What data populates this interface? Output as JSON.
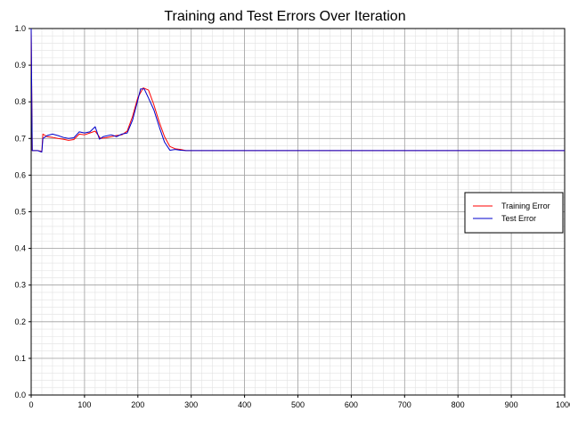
{
  "chart_data": {
    "type": "line",
    "title": "Training and Test Errors Over Iteration",
    "xlabel": "",
    "ylabel": "",
    "xlim": [
      0,
      1000
    ],
    "ylim": [
      0.0,
      1.0
    ],
    "x_ticks": [
      "0",
      "100",
      "200",
      "300",
      "400",
      "500",
      "600",
      "700",
      "800",
      "900",
      "1000"
    ],
    "y_ticks": [
      "0.0",
      "0.1",
      "0.2",
      "0.3",
      "0.4",
      "0.5",
      "0.6",
      "0.7",
      "0.8",
      "0.9",
      "1.0"
    ],
    "grid": true,
    "minor_grid": true,
    "legend_position": "right",
    "series": [
      {
        "name": "Training Error",
        "color": "#ff0000",
        "points": [
          [
            0,
            1.0
          ],
          [
            2,
            0.667
          ],
          [
            12,
            0.667
          ],
          [
            20,
            0.665
          ],
          [
            22,
            0.712
          ],
          [
            30,
            0.705
          ],
          [
            40,
            0.703
          ],
          [
            50,
            0.7
          ],
          [
            60,
            0.698
          ],
          [
            70,
            0.695
          ],
          [
            80,
            0.697
          ],
          [
            90,
            0.712
          ],
          [
            100,
            0.71
          ],
          [
            110,
            0.715
          ],
          [
            120,
            0.72
          ],
          [
            130,
            0.7
          ],
          [
            140,
            0.702
          ],
          [
            150,
            0.705
          ],
          [
            160,
            0.708
          ],
          [
            170,
            0.71
          ],
          [
            180,
            0.72
          ],
          [
            190,
            0.76
          ],
          [
            200,
            0.812
          ],
          [
            210,
            0.838
          ],
          [
            220,
            0.832
          ],
          [
            230,
            0.792
          ],
          [
            240,
            0.745
          ],
          [
            250,
            0.705
          ],
          [
            260,
            0.678
          ],
          [
            270,
            0.672
          ],
          [
            280,
            0.67
          ],
          [
            290,
            0.667
          ],
          [
            300,
            0.667
          ],
          [
            1000,
            0.667
          ]
        ]
      },
      {
        "name": "Test Error",
        "color": "#0000cc",
        "points": [
          [
            0,
            1.0
          ],
          [
            2,
            0.667
          ],
          [
            12,
            0.667
          ],
          [
            20,
            0.663
          ],
          [
            22,
            0.7
          ],
          [
            30,
            0.708
          ],
          [
            40,
            0.712
          ],
          [
            50,
            0.708
          ],
          [
            60,
            0.703
          ],
          [
            70,
            0.7
          ],
          [
            80,
            0.702
          ],
          [
            90,
            0.718
          ],
          [
            100,
            0.715
          ],
          [
            110,
            0.718
          ],
          [
            120,
            0.732
          ],
          [
            128,
            0.698
          ],
          [
            135,
            0.705
          ],
          [
            150,
            0.71
          ],
          [
            160,
            0.705
          ],
          [
            170,
            0.712
          ],
          [
            180,
            0.715
          ],
          [
            190,
            0.75
          ],
          [
            200,
            0.805
          ],
          [
            205,
            0.835
          ],
          [
            212,
            0.835
          ],
          [
            220,
            0.81
          ],
          [
            230,
            0.778
          ],
          [
            240,
            0.732
          ],
          [
            250,
            0.69
          ],
          [
            260,
            0.668
          ],
          [
            270,
            0.67
          ],
          [
            280,
            0.668
          ],
          [
            290,
            0.667
          ],
          [
            300,
            0.667
          ],
          [
            1000,
            0.667
          ]
        ]
      }
    ]
  }
}
